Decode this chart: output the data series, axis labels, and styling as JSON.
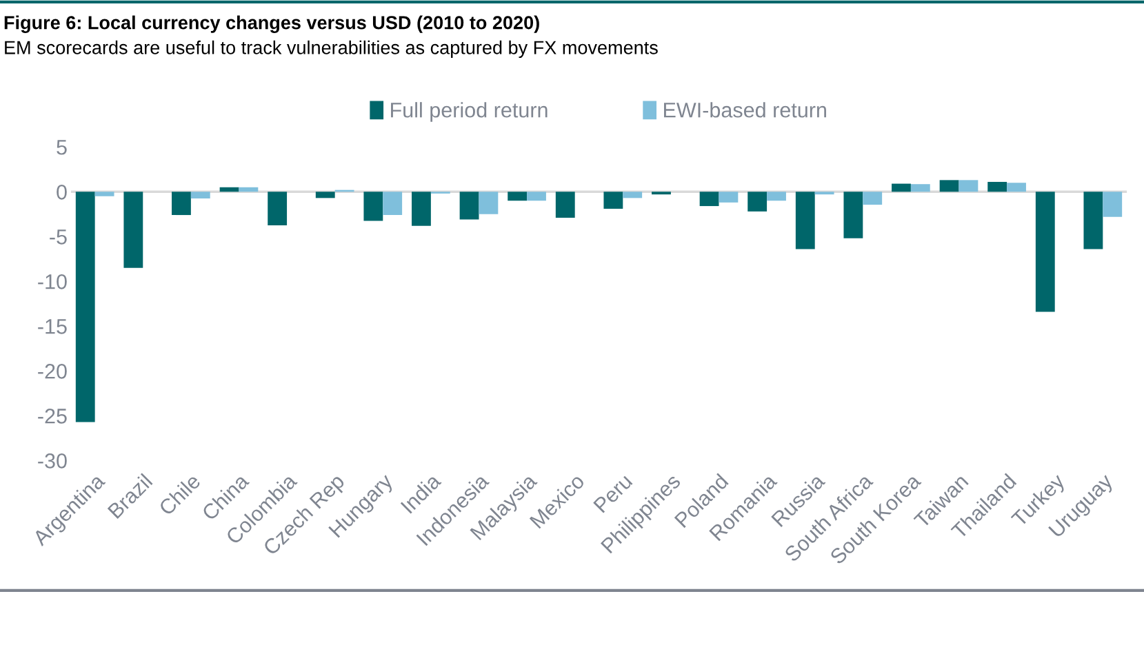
{
  "chart_data": {
    "type": "bar",
    "title": "Figure 6: Local currency changes versus USD (2010 to 2020)",
    "subtitle": "EM scorecards are useful to track vulnerabilities as captured by FX movements",
    "categories": [
      "Argentina",
      "Brazil",
      "Chile",
      "China",
      "Colombia",
      "Czech Rep",
      "Hungary",
      "India",
      "Indonesia",
      "Malaysia",
      "Mexico",
      "Peru",
      "Philippines",
      "Poland",
      "Romania",
      "Russia",
      "South Africa",
      "South Korea",
      "Taiwan",
      "Thailand",
      "Turkey",
      "Uruguay"
    ],
    "series": [
      {
        "name": "Full period return",
        "color": "#00666a",
        "values": [
          -25.7,
          -8.5,
          -2.6,
          0.5,
          -3.75,
          -0.7,
          -3.25,
          -3.8,
          -3.1,
          -1.0,
          -2.9,
          -1.9,
          -0.3,
          -1.6,
          -2.2,
          -6.4,
          -5.2,
          0.9,
          1.3,
          1.1,
          -13.4,
          -6.4
        ]
      },
      {
        "name": "EWI-based return",
        "color": "#7fbfdc",
        "values": [
          -0.5,
          0,
          -0.75,
          0.5,
          0,
          0.2,
          -2.6,
          -0.2,
          -2.5,
          -1.0,
          0,
          -0.7,
          0,
          -1.2,
          -1.0,
          -0.3,
          -1.45,
          0.85,
          1.3,
          1.0,
          0,
          -2.8
        ]
      }
    ],
    "ylim": [
      -30,
      5
    ],
    "yticks": [
      5,
      0,
      -5,
      -10,
      -15,
      -20,
      -25,
      -30
    ],
    "ref_lines": [
      {
        "axis": "y",
        "value": 0,
        "color": "#d9d9d9"
      }
    ],
    "legend": "top"
  }
}
